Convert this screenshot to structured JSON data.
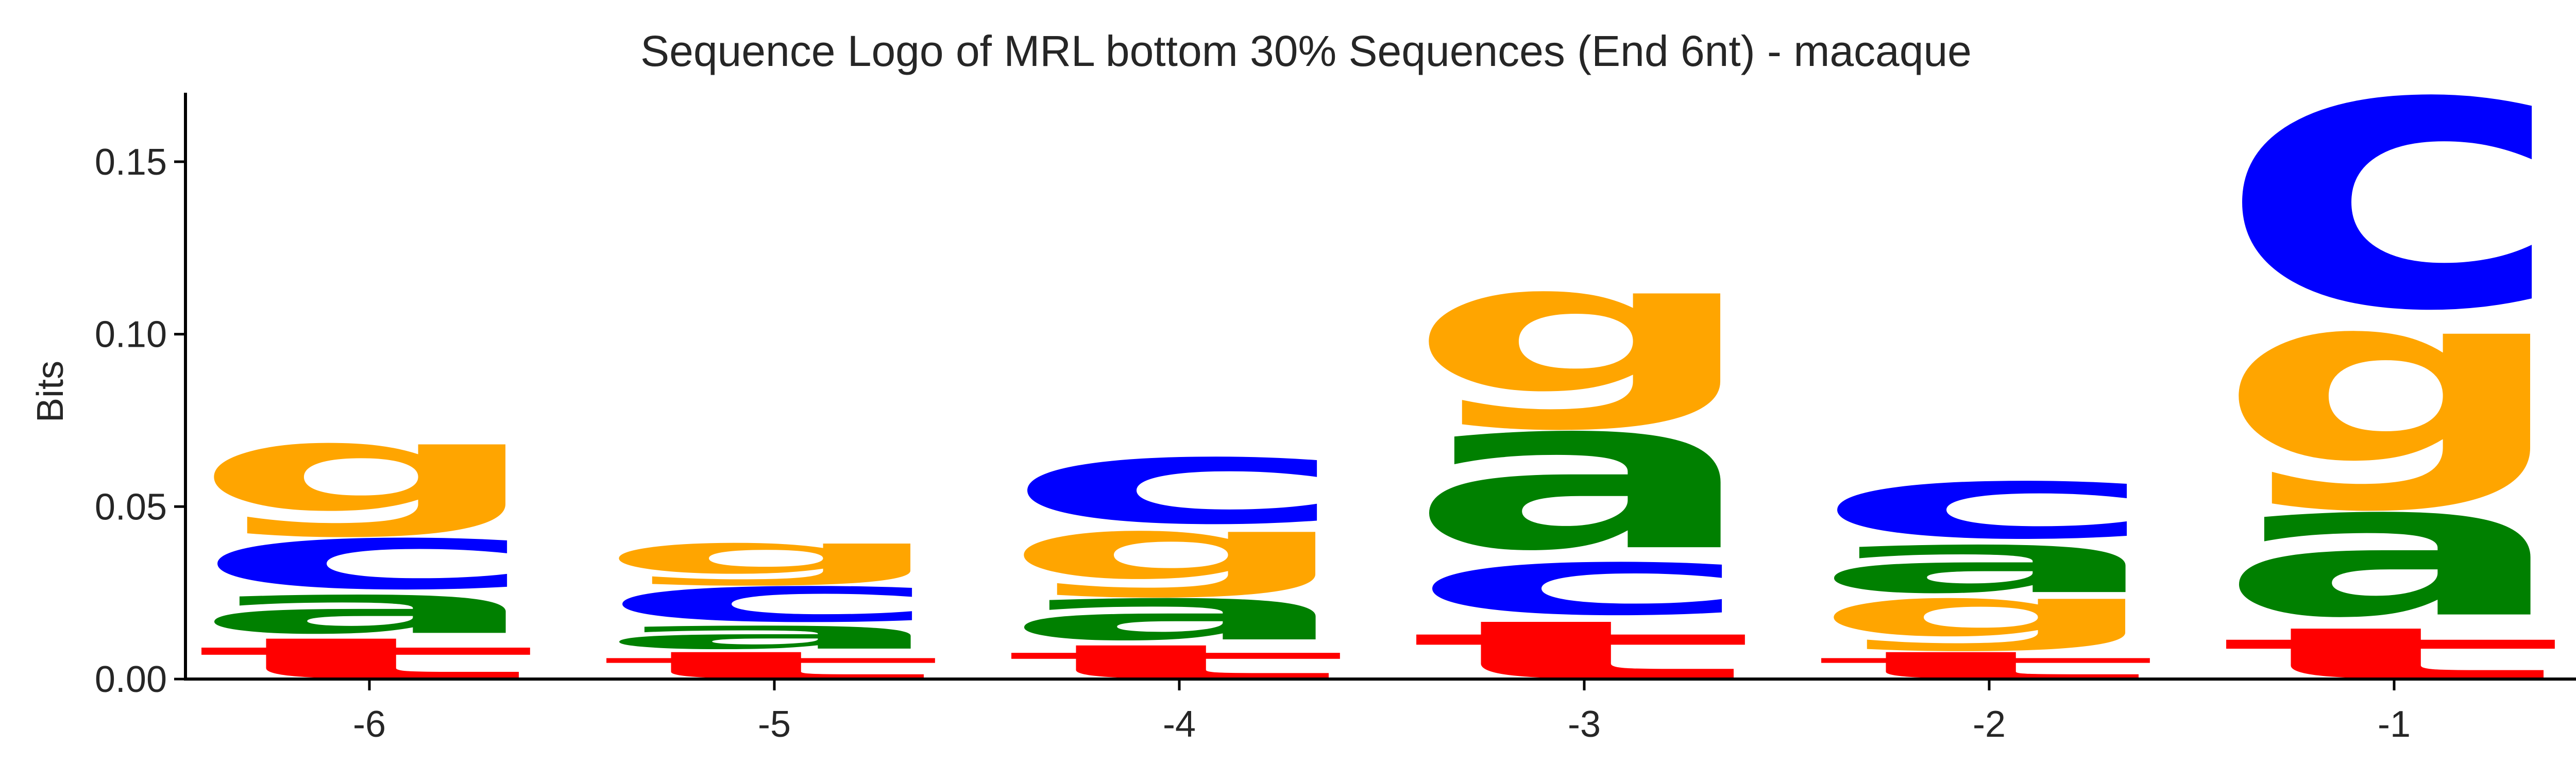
{
  "chart_data": {
    "type": "sequence-logo",
    "title": "Sequence Logo of MRL bottom 30% Sequences (End 6nt) - macaque",
    "ylabel": "Bits",
    "xlabel": "",
    "ylim": [
      0,
      0.17
    ],
    "yticks": [
      0.0,
      0.05,
      0.1,
      0.15
    ],
    "ytick_labels": [
      "0.00",
      "0.05",
      "0.10",
      "0.15"
    ],
    "positions": [
      "-6",
      "-5",
      "-4",
      "-3",
      "-2",
      "-1"
    ],
    "colors": {
      "a": "#008000",
      "c": "#0000ff",
      "g": "#ffa500",
      "t": "#ff0000"
    },
    "stacks": [
      {
        "position": "-6",
        "letters": [
          {
            "base": "t",
            "height": 0.012
          },
          {
            "base": "a",
            "height": 0.0125
          },
          {
            "base": "c",
            "height": 0.0165
          },
          {
            "base": "g",
            "height": 0.0275
          }
        ]
      },
      {
        "position": "-5",
        "letters": [
          {
            "base": "t",
            "height": 0.008
          },
          {
            "base": "a",
            "height": 0.0075
          },
          {
            "base": "c",
            "height": 0.0115
          },
          {
            "base": "g",
            "height": 0.0125
          }
        ]
      },
      {
        "position": "-4",
        "letters": [
          {
            "base": "t",
            "height": 0.01
          },
          {
            "base": "a",
            "height": 0.0135
          },
          {
            "base": "g",
            "height": 0.0195
          },
          {
            "base": "c",
            "height": 0.0215
          }
        ]
      },
      {
        "position": "-3",
        "letters": [
          {
            "base": "t",
            "height": 0.017
          },
          {
            "base": "c",
            "height": 0.017
          },
          {
            "base": "a",
            "height": 0.038
          },
          {
            "base": "g",
            "height": 0.0405
          }
        ]
      },
      {
        "position": "-2",
        "letters": [
          {
            "base": "t",
            "height": 0.008
          },
          {
            "base": "g",
            "height": 0.0155
          },
          {
            "base": "a",
            "height": 0.0155
          },
          {
            "base": "c",
            "height": 0.0185
          }
        ]
      },
      {
        "position": "-1",
        "letters": [
          {
            "base": "t",
            "height": 0.015
          },
          {
            "base": "a",
            "height": 0.0335
          },
          {
            "base": "g",
            "height": 0.0525
          },
          {
            "base": "c",
            "height": 0.0685
          }
        ]
      }
    ]
  }
}
